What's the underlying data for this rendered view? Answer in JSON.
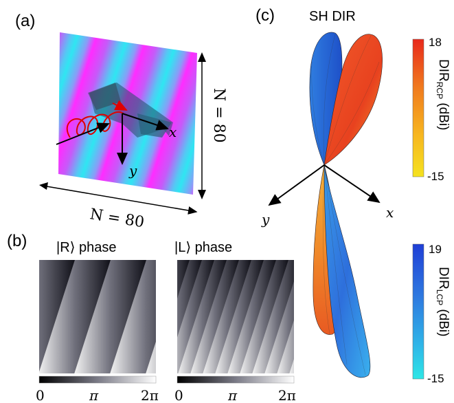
{
  "panel_a": {
    "label": "(a)",
    "n_bottom": "N = 80",
    "n_right": "N = 80",
    "x_axis": "x",
    "y_axis": "y",
    "colors": {
      "magenta": "#ff33ff",
      "cyan": "#33e6f2",
      "beam": "#1f4f66",
      "helix": "#e00000"
    }
  },
  "panel_b": {
    "label": "(b)",
    "left_title": "|R⟩ phase",
    "right_title": "|L⟩ phase",
    "left_ticks": [
      "0",
      "π",
      "2π"
    ],
    "right_ticks": [
      "0",
      "π",
      "2π"
    ]
  },
  "panel_c": {
    "label": "(c)",
    "title": "SH DIR",
    "x_axis": "x",
    "y_axis": "y",
    "colorbar_top": {
      "max": "18",
      "min": "-15",
      "label_main": "DIR",
      "label_sub": "RCP",
      "label_unit": " (dBi)",
      "colors": [
        "#e8291c",
        "#f07a1e",
        "#f7b71f",
        "#f5e21f"
      ]
    },
    "colorbar_bottom": {
      "max": "19",
      "min": "-15",
      "label_main": "DIR",
      "label_sub": "LCP",
      "label_unit": " (dBi)",
      "colors": [
        "#1f3fd6",
        "#2f7be0",
        "#2fb6e8",
        "#2ee6e6"
      ]
    },
    "lobe_colors": {
      "blue": "#2f63d8",
      "red": "#e4462a",
      "orange": "#f08c2a",
      "cyan": "#2fa8ee"
    }
  }
}
